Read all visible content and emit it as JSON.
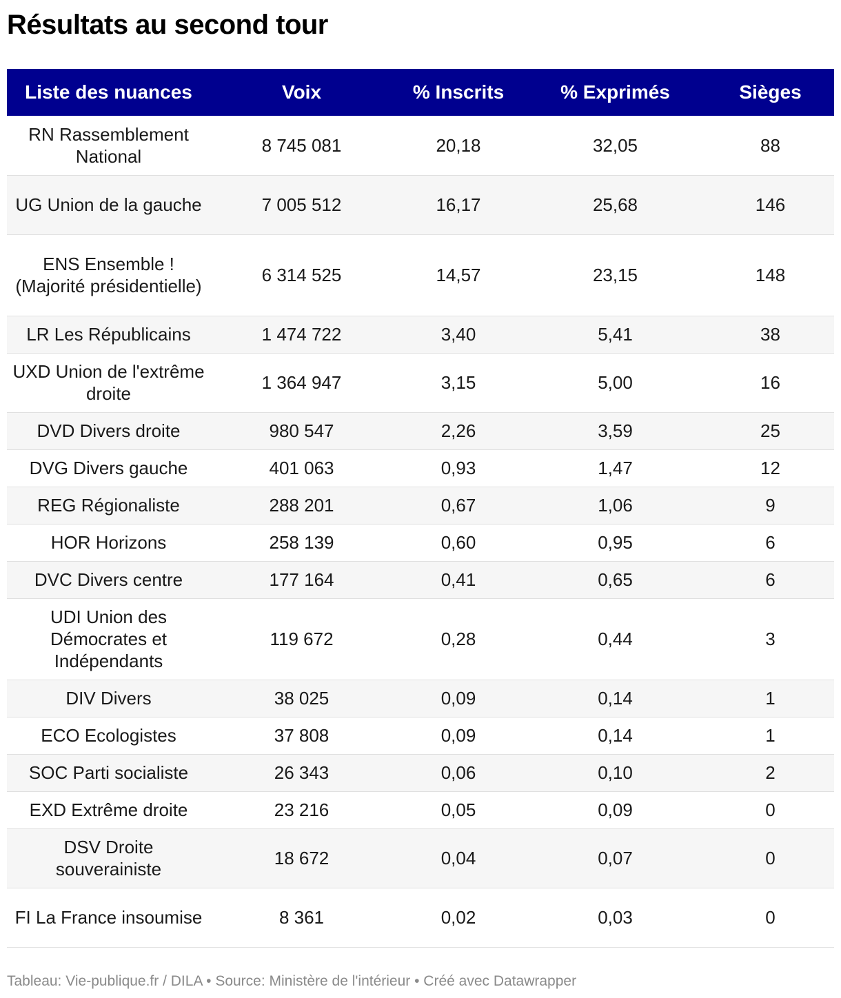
{
  "title": "Résultats au second tour",
  "footer": "Tableau: Vie-publique.fr / DILA • Source: Ministère de l'intérieur • Créé avec Datawrapper",
  "colors": {
    "header_bg": "#00008f",
    "header_text": "#ffffff",
    "stripe": "#f6f6f6"
  },
  "chart_data": {
    "type": "table",
    "title": "Résultats au second tour",
    "columns": [
      "Liste des nuances",
      "Voix",
      "% Inscrits",
      "% Exprimés",
      "Sièges"
    ],
    "rows": [
      [
        "RN Rassemblement National",
        "8 745 081",
        "20,18",
        "32,05",
        "88"
      ],
      [
        "UG Union de la gauche",
        "7 005 512",
        "16,17",
        "25,68",
        "146"
      ],
      [
        "ENS Ensemble ! (Majorité présidentielle)",
        "6 314 525",
        "14,57",
        "23,15",
        "148"
      ],
      [
        "LR Les Républicains",
        "1 474 722",
        "3,40",
        "5,41",
        "38"
      ],
      [
        "UXD Union de l'extrême droite",
        "1 364 947",
        "3,15",
        "5,00",
        "16"
      ],
      [
        "DVD Divers droite",
        "980 547",
        "2,26",
        "3,59",
        "25"
      ],
      [
        "DVG Divers gauche",
        "401 063",
        "0,93",
        "1,47",
        "12"
      ],
      [
        "REG Régionaliste",
        "288 201",
        "0,67",
        "1,06",
        "9"
      ],
      [
        "HOR Horizons",
        "258 139",
        "0,60",
        "0,95",
        "6"
      ],
      [
        "DVC Divers centre",
        "177 164",
        "0,41",
        "0,65",
        "6"
      ],
      [
        "UDI Union des Démocrates et Indépendants",
        "119 672",
        "0,28",
        "0,44",
        "3"
      ],
      [
        "DIV Divers",
        "38 025",
        "0,09",
        "0,14",
        "1"
      ],
      [
        "ECO Ecologistes",
        "37 808",
        "0,09",
        "0,14",
        "1"
      ],
      [
        "SOC Parti socialiste",
        "26 343",
        "0,06",
        "0,10",
        "2"
      ],
      [
        "EXD Extrême droite",
        "23 216",
        "0,05",
        "0,09",
        "0"
      ],
      [
        "DSV Droite souverainiste",
        "18 672",
        "0,04",
        "0,07",
        "0"
      ],
      [
        "FI La France insoumise",
        "8 361",
        "0,02",
        "0,03",
        "0"
      ]
    ]
  }
}
